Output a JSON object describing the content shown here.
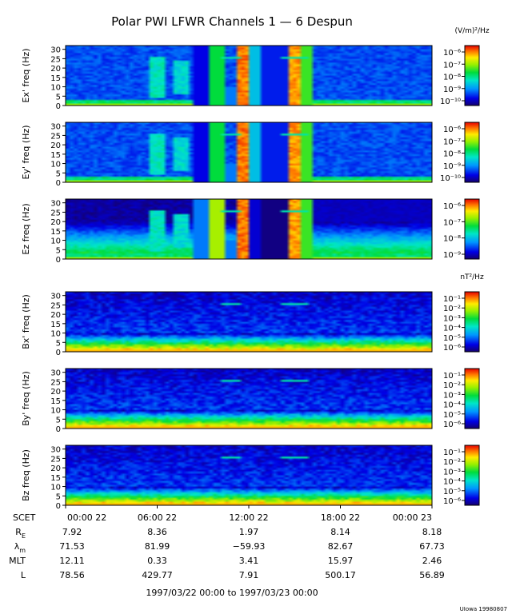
{
  "chart_data": {
    "type": "heatmap",
    "title": "Polar PWI LFWR Channels 1 — 6 Despun",
    "panels": [
      {
        "id": "ex",
        "ylabel": "Ex' freq (Hz)",
        "unit": "(V/m)²/Hz",
        "colorbar_ticks": [
          "10⁻⁶",
          "10⁻⁷",
          "10⁻⁸",
          "10⁻⁹",
          "10⁻¹⁰"
        ],
        "style": "electric"
      },
      {
        "id": "ey",
        "ylabel": "Ey' freq (Hz)",
        "unit": "",
        "colorbar_ticks": [
          "10⁻⁶",
          "10⁻⁷",
          "10⁻⁸",
          "10⁻⁹",
          "10⁻¹⁰"
        ],
        "style": "electric"
      },
      {
        "id": "ez",
        "ylabel": "Ez freq (Hz)",
        "unit": "",
        "colorbar_ticks": [
          "10⁻⁶",
          "10⁻⁷",
          "10⁻⁸",
          "10⁻⁹"
        ],
        "style": "electricz"
      },
      {
        "id": "bx",
        "ylabel": "Bx' freq (Hz)",
        "unit": "nT²/Hz",
        "colorbar_ticks": [
          "10⁻¹",
          "10⁻²",
          "10⁻³",
          "10⁻⁴",
          "10⁻⁵",
          "10⁻⁶"
        ],
        "style": "magnetic"
      },
      {
        "id": "by",
        "ylabel": "By' freq (Hz)",
        "unit": "",
        "colorbar_ticks": [
          "10⁻¹",
          "10⁻²",
          "10⁻³",
          "10⁻⁴",
          "10⁻⁵",
          "10⁻⁶"
        ],
        "style": "magnetic"
      },
      {
        "id": "bz",
        "ylabel": "Bz freq (Hz)",
        "unit": "",
        "colorbar_ticks": [
          "10⁻¹",
          "10⁻²",
          "10⁻³",
          "10⁻⁴",
          "10⁻⁵",
          "10⁻⁶"
        ],
        "style": "magnetic"
      }
    ],
    "yticks": [
      "30",
      "25",
      "20",
      "15",
      "10",
      "5",
      "0"
    ],
    "ylim": [
      0,
      32
    ],
    "xlim_hours": [
      0,
      24
    ],
    "x_tick_hours": [
      0,
      6,
      12,
      18,
      24
    ],
    "x_tick_labels": [
      "00:00 22",
      "06:00 22",
      "12:00 22",
      "18:00 22",
      "00:00 23"
    ],
    "ephemeris": [
      {
        "label": "R",
        "sub": "E",
        "values": [
          "7.92",
          "8.36",
          "1.97",
          "8.14",
          "8.18"
        ]
      },
      {
        "label": "λ",
        "sub": "m",
        "values": [
          "71.53",
          "81.99",
          "−59.93",
          "82.67",
          "67.73"
        ]
      },
      {
        "label": "MLT",
        "sub": "",
        "values": [
          "12.11",
          "0.33",
          "3.41",
          "15.97",
          "2.46"
        ]
      },
      {
        "label": "L",
        "sub": "",
        "values": [
          "78.56",
          "429.77",
          "7.91",
          "500.17",
          "56.89"
        ]
      }
    ],
    "scet_label": "SCET",
    "date_range": "1997/03/22 00:00 to 1997/03/23 00:00",
    "footer": "UIowa 19980807",
    "grid": false
  }
}
